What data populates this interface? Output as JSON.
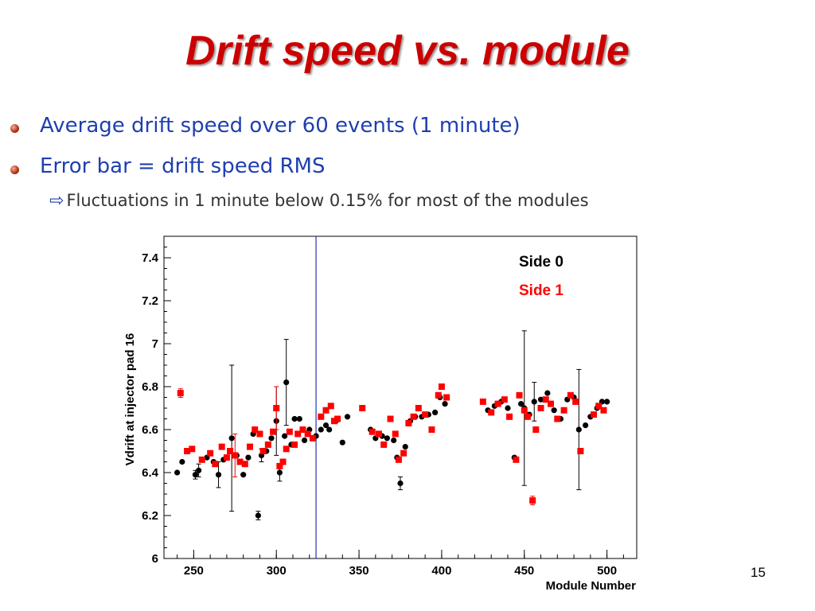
{
  "slide": {
    "title": "Drift speed vs. module",
    "bullets": [
      "Average drift speed over 60 events (1 minute)",
      "Error bar = drift speed RMS"
    ],
    "sub_bullet": "Fluctuations in 1 minute below 0.15% for most of the modules",
    "page_number": "15"
  },
  "chart_data": {
    "type": "scatter",
    "title": "",
    "xlabel": "Module Number",
    "ylabel": "Vdrift at injector pad 16",
    "xlim": [
      232,
      518
    ],
    "ylim": [
      6,
      7.5
    ],
    "x_ticks": [
      250,
      300,
      350,
      400,
      450,
      500
    ],
    "y_ticks": [
      6,
      6.2,
      6.4,
      6.6,
      6.8,
      7,
      7.2,
      7.4
    ],
    "vertical_line_x": 324,
    "grid": false,
    "legend": "top-right",
    "colors": {
      "side0": "#000000",
      "side1": "#ff0000",
      "vline": "#2233aa"
    },
    "series": [
      {
        "name": "Side 0",
        "color": "#000000",
        "points": [
          {
            "x": 240,
            "y": 6.4,
            "err": 0
          },
          {
            "x": 243,
            "y": 6.45,
            "err": 0
          },
          {
            "x": 251,
            "y": 6.39,
            "err": 0.02
          },
          {
            "x": 253,
            "y": 6.41,
            "err": 0.03
          },
          {
            "x": 258,
            "y": 6.47,
            "err": 0
          },
          {
            "x": 262,
            "y": 6.45,
            "err": 0
          },
          {
            "x": 265,
            "y": 6.39,
            "err": 0.06
          },
          {
            "x": 268,
            "y": 6.46,
            "err": 0
          },
          {
            "x": 273,
            "y": 6.56,
            "err": 0.34
          },
          {
            "x": 276,
            "y": 6.48,
            "err": 0
          },
          {
            "x": 280,
            "y": 6.39,
            "err": 0
          },
          {
            "x": 283,
            "y": 6.47,
            "err": 0
          },
          {
            "x": 286,
            "y": 6.58,
            "err": 0
          },
          {
            "x": 289,
            "y": 6.2,
            "err": 0.02
          },
          {
            "x": 291,
            "y": 6.48,
            "err": 0.03
          },
          {
            "x": 294,
            "y": 6.5,
            "err": 0
          },
          {
            "x": 297,
            "y": 6.56,
            "err": 0
          },
          {
            "x": 300,
            "y": 6.64,
            "err": 0.16
          },
          {
            "x": 302,
            "y": 6.4,
            "err": 0.04
          },
          {
            "x": 305,
            "y": 6.57,
            "err": 0
          },
          {
            "x": 306,
            "y": 6.82,
            "err": 0.2
          },
          {
            "x": 309,
            "y": 6.53,
            "err": 0
          },
          {
            "x": 311,
            "y": 6.65,
            "err": 0
          },
          {
            "x": 314,
            "y": 6.65,
            "err": 0
          },
          {
            "x": 317,
            "y": 6.55,
            "err": 0
          },
          {
            "x": 320,
            "y": 6.6,
            "err": 0
          },
          {
            "x": 324,
            "y": 6.57,
            "err": 0
          },
          {
            "x": 327,
            "y": 6.6,
            "err": 0
          },
          {
            "x": 330,
            "y": 6.62,
            "err": 0
          },
          {
            "x": 332,
            "y": 6.6,
            "err": 0
          },
          {
            "x": 336,
            "y": 6.64,
            "err": 0
          },
          {
            "x": 340,
            "y": 6.54,
            "err": 0
          },
          {
            "x": 343,
            "y": 6.66,
            "err": 0
          },
          {
            "x": 357,
            "y": 6.6,
            "err": 0
          },
          {
            "x": 360,
            "y": 6.56,
            "err": 0
          },
          {
            "x": 364,
            "y": 6.57,
            "err": 0
          },
          {
            "x": 367,
            "y": 6.56,
            "err": 0
          },
          {
            "x": 371,
            "y": 6.55,
            "err": 0
          },
          {
            "x": 373,
            "y": 6.47,
            "err": 0
          },
          {
            "x": 375,
            "y": 6.35,
            "err": 0.03
          },
          {
            "x": 378,
            "y": 6.52,
            "err": 0
          },
          {
            "x": 381,
            "y": 6.64,
            "err": 0
          },
          {
            "x": 384,
            "y": 6.66,
            "err": 0
          },
          {
            "x": 388,
            "y": 6.66,
            "err": 0
          },
          {
            "x": 392,
            "y": 6.67,
            "err": 0
          },
          {
            "x": 396,
            "y": 6.68,
            "err": 0
          },
          {
            "x": 399,
            "y": 6.75,
            "err": 0
          },
          {
            "x": 402,
            "y": 6.72,
            "err": 0
          },
          {
            "x": 428,
            "y": 6.69,
            "err": 0
          },
          {
            "x": 432,
            "y": 6.71,
            "err": 0
          },
          {
            "x": 436,
            "y": 6.73,
            "err": 0
          },
          {
            "x": 440,
            "y": 6.7,
            "err": 0
          },
          {
            "x": 444,
            "y": 6.47,
            "err": 0
          },
          {
            "x": 448,
            "y": 6.72,
            "err": 0
          },
          {
            "x": 450,
            "y": 6.7,
            "err": 0.36
          },
          {
            "x": 453,
            "y": 6.67,
            "err": 0
          },
          {
            "x": 456,
            "y": 6.73,
            "err": 0.09
          },
          {
            "x": 460,
            "y": 6.74,
            "err": 0
          },
          {
            "x": 464,
            "y": 6.77,
            "err": 0
          },
          {
            "x": 468,
            "y": 6.69,
            "err": 0
          },
          {
            "x": 472,
            "y": 6.65,
            "err": 0
          },
          {
            "x": 476,
            "y": 6.74,
            "err": 0
          },
          {
            "x": 480,
            "y": 6.75,
            "err": 0
          },
          {
            "x": 483,
            "y": 6.6,
            "err": 0.28
          },
          {
            "x": 487,
            "y": 6.62,
            "err": 0
          },
          {
            "x": 490,
            "y": 6.66,
            "err": 0
          },
          {
            "x": 494,
            "y": 6.7,
            "err": 0
          },
          {
            "x": 497,
            "y": 6.73,
            "err": 0
          },
          {
            "x": 500,
            "y": 6.73,
            "err": 0
          }
        ]
      },
      {
        "name": "Side 1",
        "color": "#ff0000",
        "points": [
          {
            "x": 242,
            "y": 6.77,
            "err": 0.02
          },
          {
            "x": 246,
            "y": 6.5,
            "err": 0
          },
          {
            "x": 249,
            "y": 6.51,
            "err": 0
          },
          {
            "x": 255,
            "y": 6.46,
            "err": 0
          },
          {
            "x": 260,
            "y": 6.49,
            "err": 0
          },
          {
            "x": 263,
            "y": 6.44,
            "err": 0
          },
          {
            "x": 267,
            "y": 6.52,
            "err": 0
          },
          {
            "x": 270,
            "y": 6.47,
            "err": 0
          },
          {
            "x": 272,
            "y": 6.5,
            "err": 0
          },
          {
            "x": 275,
            "y": 6.48,
            "err": 0.1
          },
          {
            "x": 278,
            "y": 6.45,
            "err": 0
          },
          {
            "x": 281,
            "y": 6.44,
            "err": 0
          },
          {
            "x": 284,
            "y": 6.52,
            "err": 0
          },
          {
            "x": 287,
            "y": 6.6,
            "err": 0
          },
          {
            "x": 290,
            "y": 6.58,
            "err": 0
          },
          {
            "x": 292,
            "y": 6.5,
            "err": 0
          },
          {
            "x": 295,
            "y": 6.53,
            "err": 0
          },
          {
            "x": 298,
            "y": 6.59,
            "err": 0
          },
          {
            "x": 300,
            "y": 6.7,
            "err": 0.1
          },
          {
            "x": 302,
            "y": 6.43,
            "err": 0
          },
          {
            "x": 304,
            "y": 6.45,
            "err": 0
          },
          {
            "x": 306,
            "y": 6.51,
            "err": 0
          },
          {
            "x": 308,
            "y": 6.59,
            "err": 0
          },
          {
            "x": 311,
            "y": 6.53,
            "err": 0
          },
          {
            "x": 313,
            "y": 6.58,
            "err": 0
          },
          {
            "x": 316,
            "y": 6.6,
            "err": 0
          },
          {
            "x": 319,
            "y": 6.58,
            "err": 0
          },
          {
            "x": 322,
            "y": 6.56,
            "err": 0
          },
          {
            "x": 327,
            "y": 6.66,
            "err": 0
          },
          {
            "x": 330,
            "y": 6.69,
            "err": 0
          },
          {
            "x": 333,
            "y": 6.71,
            "err": 0
          },
          {
            "x": 335,
            "y": 6.64,
            "err": 0
          },
          {
            "x": 337,
            "y": 6.65,
            "err": 0
          },
          {
            "x": 352,
            "y": 6.7,
            "err": 0
          },
          {
            "x": 358,
            "y": 6.59,
            "err": 0
          },
          {
            "x": 362,
            "y": 6.58,
            "err": 0
          },
          {
            "x": 365,
            "y": 6.53,
            "err": 0
          },
          {
            "x": 369,
            "y": 6.65,
            "err": 0
          },
          {
            "x": 372,
            "y": 6.58,
            "err": 0
          },
          {
            "x": 374,
            "y": 6.46,
            "err": 0
          },
          {
            "x": 377,
            "y": 6.49,
            "err": 0
          },
          {
            "x": 380,
            "y": 6.63,
            "err": 0
          },
          {
            "x": 383,
            "y": 6.66,
            "err": 0
          },
          {
            "x": 386,
            "y": 6.7,
            "err": 0
          },
          {
            "x": 390,
            "y": 6.67,
            "err": 0
          },
          {
            "x": 394,
            "y": 6.6,
            "err": 0
          },
          {
            "x": 398,
            "y": 6.76,
            "err": 0
          },
          {
            "x": 400,
            "y": 6.8,
            "err": 0
          },
          {
            "x": 403,
            "y": 6.75,
            "err": 0
          },
          {
            "x": 425,
            "y": 6.73,
            "err": 0
          },
          {
            "x": 430,
            "y": 6.68,
            "err": 0
          },
          {
            "x": 434,
            "y": 6.72,
            "err": 0
          },
          {
            "x": 438,
            "y": 6.74,
            "err": 0
          },
          {
            "x": 441,
            "y": 6.66,
            "err": 0
          },
          {
            "x": 445,
            "y": 6.46,
            "err": 0
          },
          {
            "x": 447,
            "y": 6.76,
            "err": 0
          },
          {
            "x": 450,
            "y": 6.69,
            "err": 0
          },
          {
            "x": 452,
            "y": 6.66,
            "err": 0
          },
          {
            "x": 455,
            "y": 6.27,
            "err": 0.02
          },
          {
            "x": 457,
            "y": 6.6,
            "err": 0
          },
          {
            "x": 460,
            "y": 6.7,
            "err": 0
          },
          {
            "x": 463,
            "y": 6.74,
            "err": 0
          },
          {
            "x": 466,
            "y": 6.72,
            "err": 0
          },
          {
            "x": 470,
            "y": 6.65,
            "err": 0
          },
          {
            "x": 474,
            "y": 6.69,
            "err": 0
          },
          {
            "x": 478,
            "y": 6.76,
            "err": 0
          },
          {
            "x": 481,
            "y": 6.73,
            "err": 0
          },
          {
            "x": 484,
            "y": 6.5,
            "err": 0
          },
          {
            "x": 492,
            "y": 6.67,
            "err": 0
          },
          {
            "x": 495,
            "y": 6.71,
            "err": 0
          },
          {
            "x": 498,
            "y": 6.69,
            "err": 0
          }
        ]
      }
    ]
  }
}
